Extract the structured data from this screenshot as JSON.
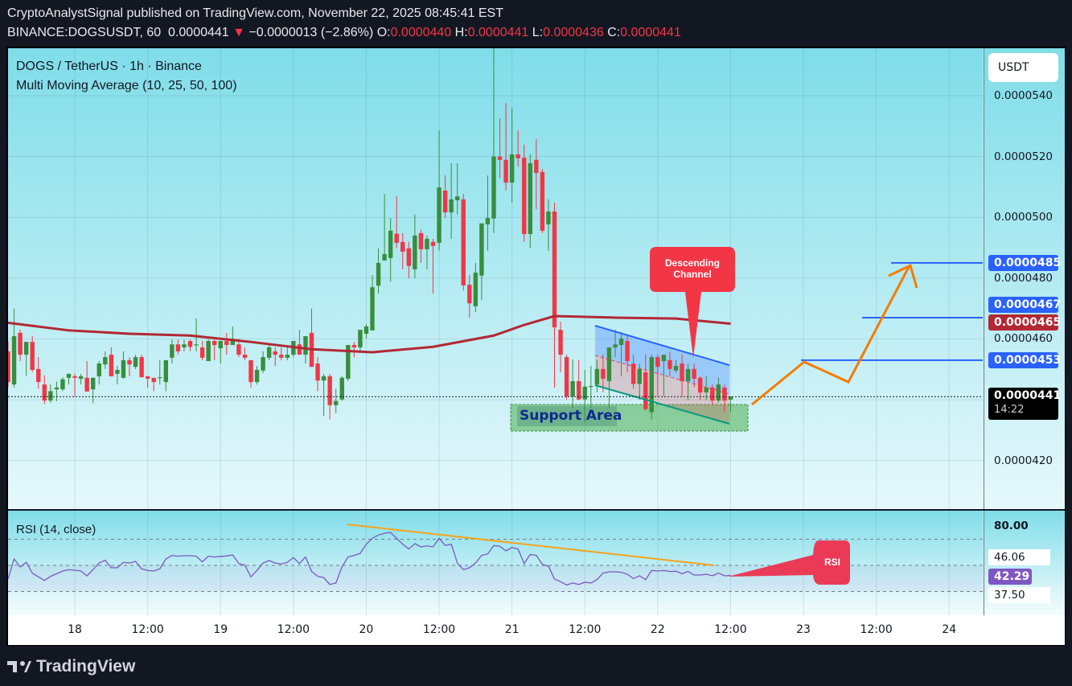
{
  "header": {
    "publisher_line": "CryptoAnalystSignal published on TradingView.com, November 22, 2025 08:45:41 EST",
    "symbol": "BINANCE:DOGSUSDT, 60",
    "last": "0.0000441",
    "change": "−0.0000013 (−2.86%)",
    "o_label": "O:",
    "o": "0.0000440",
    "h_label": "H:",
    "h": "0.0000441",
    "l_label": "L:",
    "l": "0.0000436",
    "c_label": "C:",
    "c": "0.0000441"
  },
  "legend": {
    "title": "DOGS / TetherUS · 1h · Binance",
    "indicator": "Multi Moving Average (10, 25, 50, 100)",
    "rsi": "RSI (14, close)"
  },
  "price_scale": {
    "currency": "USDT",
    "labels": [
      "0.0000540",
      "0.0000520",
      "0.0000500",
      "0.0000480",
      "0.0000460",
      "0.0000420"
    ],
    "current_price": "0.0000441",
    "countdown": "14:22",
    "ma_value": "0.0000465",
    "levels": [
      {
        "label": "0.0000485",
        "price": 4.85e-05
      },
      {
        "label": "0.0000467",
        "price": 4.67e-05
      },
      {
        "label": "0.0000453",
        "price": 4.53e-05
      }
    ]
  },
  "rsi_scale": {
    "labels": [
      "80.00",
      "46.06",
      "42.29",
      "37.50"
    ],
    "current": "42.29"
  },
  "annotations": {
    "descending_channel": "Descending Channel",
    "support_area": "Support Area",
    "rsi_callout": "RSI"
  },
  "branding": "TradingView",
  "colors": {
    "up": "#388e3c",
    "down": "#f23645",
    "ma": "#b22833",
    "level": "#2962ff",
    "rsi": "#7e57c2",
    "projection": "#f57c00"
  },
  "chart_data": {
    "type": "candlestick",
    "symbol": "DOGSUSDT",
    "interval": "1h",
    "ylim": [
      4.08e-05,
      5.55e-05
    ],
    "x_ticks": [
      {
        "label": "18",
        "time": "11-18 00:00"
      },
      {
        "label": "12:00",
        "time": "11-18 12:00"
      },
      {
        "label": "19",
        "time": "11-19 00:00"
      },
      {
        "label": "12:00",
        "time": "11-19 12:00"
      },
      {
        "label": "20",
        "time": "11-20 00:00"
      },
      {
        "label": "12:00",
        "time": "11-20 12:00"
      },
      {
        "label": "21",
        "time": "11-21 00:00"
      },
      {
        "label": "12:00",
        "time": "11-21 12:00"
      },
      {
        "label": "22",
        "time": "11-22 00:00"
      },
      {
        "label": "12:00",
        "time": "11-22 12:00"
      },
      {
        "label": "23",
        "time": "11-23 00:00"
      },
      {
        "label": "12:00",
        "time": "11-23 12:00"
      },
      {
        "label": "24",
        "time": "11-24 00:00"
      }
    ],
    "candles_columns": [
      "time",
      "open",
      "high",
      "low",
      "close"
    ],
    "candles": [
      [
        "11-17 13:00",
        4.559e-05,
        4.591e-05,
        4.44e-05,
        4.458e-05
      ],
      [
        "11-17 14:00",
        4.45e-05,
        4.7e-05,
        4.44e-05,
        4.609e-05
      ],
      [
        "11-17 15:00",
        4.62e-05,
        4.63e-05,
        4.527e-05,
        4.548e-05
      ],
      [
        "11-17 16:00",
        4.548e-05,
        4.59e-05,
        4.478e-05,
        4.59e-05
      ],
      [
        "11-17 17:00",
        4.59e-05,
        4.609e-05,
        4.491e-05,
        4.498e-05
      ],
      [
        "11-17 18:00",
        4.501e-05,
        4.54e-05,
        4.436e-05,
        4.458e-05
      ],
      [
        "11-17 19:00",
        4.45e-05,
        4.48e-05,
        4.386e-05,
        4.397e-05
      ],
      [
        "11-17 20:00",
        4.397e-05,
        4.45e-05,
        4.39e-05,
        4.428e-05
      ],
      [
        "11-17 21:00",
        4.434e-05,
        4.46e-05,
        4.395e-05,
        4.44e-05
      ],
      [
        "11-17 22:00",
        4.434e-05,
        4.474e-05,
        4.428e-05,
        4.467e-05
      ],
      [
        "11-17 23:00",
        4.472e-05,
        4.485e-05,
        4.45e-05,
        4.485e-05
      ],
      [
        "11-18 00:00",
        4.477e-05,
        4.485e-05,
        4.41e-05,
        4.472e-05
      ],
      [
        "11-18 01:00",
        4.469e-05,
        4.485e-05,
        4.45e-05,
        4.477e-05
      ],
      [
        "11-18 02:00",
        4.472e-05,
        4.527e-05,
        4.427e-05,
        4.427e-05
      ],
      [
        "11-18 03:00",
        4.434e-05,
        4.474e-05,
        4.388e-05,
        4.472e-05
      ],
      [
        "11-18 04:00",
        4.477e-05,
        4.527e-05,
        4.45e-05,
        4.519e-05
      ],
      [
        "11-18 05:00",
        4.516e-05,
        4.559e-05,
        4.501e-05,
        4.54e-05
      ],
      [
        "11-18 06:00",
        4.548e-05,
        4.572e-05,
        4.477e-05,
        4.477e-05
      ],
      [
        "11-18 07:00",
        4.485e-05,
        4.511e-05,
        4.45e-05,
        4.498e-05
      ],
      [
        "11-18 08:00",
        4.472e-05,
        4.559e-05,
        4.469e-05,
        4.53e-05
      ],
      [
        "11-18 09:00",
        4.53e-05,
        4.54e-05,
        4.477e-05,
        4.516e-05
      ],
      [
        "11-18 10:00",
        4.508e-05,
        4.548e-05,
        4.501e-05,
        4.54e-05
      ],
      [
        "11-18 11:00",
        4.54e-05,
        4.548e-05,
        4.474e-05,
        4.474e-05
      ],
      [
        "11-18 12:00",
        4.477e-05,
        4.477e-05,
        4.44e-05,
        4.469e-05
      ],
      [
        "11-18 13:00",
        4.472e-05,
        4.472e-05,
        4.428e-05,
        4.458e-05
      ],
      [
        "11-18 14:00",
        4.472e-05,
        4.53e-05,
        4.45e-05,
        4.474e-05
      ],
      [
        "11-18 15:00",
        4.458e-05,
        4.53e-05,
        4.428e-05,
        4.53e-05
      ],
      [
        "11-18 16:00",
        4.538e-05,
        4.598e-05,
        4.519e-05,
        4.582e-05
      ],
      [
        "11-18 17:00",
        4.582e-05,
        4.598e-05,
        4.548e-05,
        4.559e-05
      ],
      [
        "11-18 18:00",
        4.572e-05,
        4.598e-05,
        4.559e-05,
        4.582e-05
      ],
      [
        "11-18 19:00",
        4.593e-05,
        4.598e-05,
        4.559e-05,
        4.574e-05
      ],
      [
        "11-18 20:00",
        4.58e-05,
        4.667e-05,
        4.559e-05,
        4.582e-05
      ],
      [
        "11-18 21:00",
        4.572e-05,
        4.593e-05,
        4.53e-05,
        4.538e-05
      ],
      [
        "11-18 22:00",
        4.527e-05,
        4.598e-05,
        4.527e-05,
        4.593e-05
      ],
      [
        "11-18 23:00",
        4.593e-05,
        4.598e-05,
        4.53e-05,
        4.58e-05
      ],
      [
        "11-19 00:00",
        4.569e-05,
        4.593e-05,
        4.519e-05,
        4.593e-05
      ],
      [
        "11-19 01:00",
        4.593e-05,
        4.62e-05,
        4.548e-05,
        4.58e-05
      ],
      [
        "11-19 02:00",
        4.58e-05,
        4.641e-05,
        4.58e-05,
        4.601e-05
      ],
      [
        "11-19 03:00",
        4.582e-05,
        4.601e-05,
        4.54e-05,
        4.548e-05
      ],
      [
        "11-19 04:00",
        4.548e-05,
        4.572e-05,
        4.53e-05,
        4.538e-05
      ],
      [
        "11-19 05:00",
        4.53e-05,
        4.53e-05,
        4.44e-05,
        4.458e-05
      ],
      [
        "11-19 06:00",
        4.458e-05,
        4.511e-05,
        4.45e-05,
        4.498e-05
      ],
      [
        "11-19 07:00",
        4.496e-05,
        4.559e-05,
        4.488e-05,
        4.54e-05
      ],
      [
        "11-19 08:00",
        4.538e-05,
        4.58e-05,
        4.53e-05,
        4.572e-05
      ],
      [
        "11-19 09:00",
        4.559e-05,
        4.572e-05,
        4.511e-05,
        4.548e-05
      ],
      [
        "11-19 10:00",
        4.548e-05,
        4.572e-05,
        4.53e-05,
        4.538e-05
      ],
      [
        "11-19 11:00",
        4.538e-05,
        4.572e-05,
        4.53e-05,
        4.548e-05
      ],
      [
        "11-19 12:00",
        4.548e-05,
        4.593e-05,
        4.54e-05,
        4.593e-05
      ],
      [
        "11-19 13:00",
        4.582e-05,
        4.63e-05,
        4.548e-05,
        4.548e-05
      ],
      [
        "11-19 14:00",
        4.548e-05,
        4.609e-05,
        4.519e-05,
        4.609e-05
      ],
      [
        "11-19 15:00",
        4.62e-05,
        4.7e-05,
        4.508e-05,
        4.508e-05
      ],
      [
        "11-19 16:00",
        4.519e-05,
        4.54e-05,
        4.428e-05,
        4.463e-05
      ],
      [
        "11-19 17:00",
        4.463e-05,
        4.485e-05,
        4.346e-05,
        4.477e-05
      ],
      [
        "11-19 18:00",
        4.477e-05,
        4.485e-05,
        4.335e-05,
        4.382e-05
      ],
      [
        "11-19 19:00",
        4.382e-05,
        4.436e-05,
        4.356e-05,
        4.396e-05
      ],
      [
        "11-19 20:00",
        4.401e-05,
        4.477e-05,
        4.396e-05,
        4.472e-05
      ],
      [
        "11-19 21:00",
        4.469e-05,
        4.58e-05,
        4.461e-05,
        4.58e-05
      ],
      [
        "11-19 22:00",
        4.58e-05,
        4.59e-05,
        4.54e-05,
        4.572e-05
      ],
      [
        "11-19 23:00",
        4.572e-05,
        4.63e-05,
        4.559e-05,
        4.63e-05
      ],
      [
        "11-20 00:00",
        4.617e-05,
        4.649e-05,
        4.601e-05,
        4.641e-05
      ],
      [
        "11-20 01:00",
        4.628e-05,
        4.81e-05,
        4.628e-05,
        4.77e-05
      ],
      [
        "11-20 02:00",
        4.775e-05,
        4.898e-05,
        4.749e-05,
        4.85e-05
      ],
      [
        "11-20 03:00",
        4.858e-05,
        5.077e-05,
        4.858e-05,
        4.879e-05
      ],
      [
        "11-20 04:00",
        4.866e-05,
        4.998e-05,
        4.789e-05,
        4.956e-05
      ],
      [
        "11-20 05:00",
        4.946e-05,
        5.069e-05,
        4.898e-05,
        4.916e-05
      ],
      [
        "11-20 06:00",
        4.919e-05,
        4.948e-05,
        4.829e-05,
        4.887e-05
      ],
      [
        "11-20 07:00",
        4.898e-05,
        4.919e-05,
        4.799e-05,
        4.84e-05
      ],
      [
        "11-20 08:00",
        4.829e-05,
        5.009e-05,
        4.799e-05,
        4.94e-05
      ],
      [
        "11-20 09:00",
        4.948e-05,
        4.959e-05,
        4.85e-05,
        4.895e-05
      ],
      [
        "11-20 10:00",
        4.895e-05,
        4.94e-05,
        4.829e-05,
        4.929e-05
      ],
      [
        "11-20 11:00",
        4.919e-05,
        4.929e-05,
        4.749e-05,
        4.906e-05
      ],
      [
        "11-20 12:00",
        4.916e-05,
        5.286e-05,
        4.89e-05,
        5.098e-05
      ],
      [
        "11-20 13:00",
        5.088e-05,
        5.138e-05,
        4.998e-05,
        5.016e-05
      ],
      [
        "11-20 14:00",
        5.016e-05,
        5.178e-05,
        4.929e-05,
        5.059e-05
      ],
      [
        "11-20 15:00",
        5.056e-05,
        5.178e-05,
        5.009e-05,
        5.069e-05
      ],
      [
        "11-20 16:00",
        5.059e-05,
        5.077e-05,
        4.76e-05,
        4.776e-05
      ],
      [
        "11-20 17:00",
        4.778e-05,
        4.81e-05,
        4.67e-05,
        4.717e-05
      ],
      [
        "11-20 18:00",
        4.707e-05,
        4.85e-05,
        4.688e-05,
        4.818e-05
      ],
      [
        "11-20 19:00",
        4.808e-05,
        4.98e-05,
        4.728e-05,
        4.98e-05
      ],
      [
        "11-20 20:00",
        4.977e-05,
        5.138e-05,
        4.89e-05,
        4.998e-05
      ],
      [
        "11-20 21:00",
        4.996e-05,
        5.556e-05,
        4.948e-05,
        5.2e-05
      ],
      [
        "11-20 22:00",
        5.2e-05,
        5.326e-05,
        5.128e-05,
        5.189e-05
      ],
      [
        "11-20 23:00",
        5.189e-05,
        5.376e-05,
        5.088e-05,
        5.114e-05
      ],
      [
        "11-21 00:00",
        5.114e-05,
        5.358e-05,
        5.048e-05,
        5.207e-05
      ],
      [
        "11-21 01:00",
        5.207e-05,
        5.286e-05,
        5.167e-05,
        5.194e-05
      ],
      [
        "11-21 02:00",
        5.196e-05,
        5.239e-05,
        4.919e-05,
        4.945e-05
      ],
      [
        "11-21 03:00",
        4.945e-05,
        5.207e-05,
        4.898e-05,
        5.178e-05
      ],
      [
        "11-21 04:00",
        5.189e-05,
        5.257e-05,
        5.027e-05,
        5.146e-05
      ],
      [
        "11-21 05:00",
        5.149e-05,
        5.159e-05,
        4.948e-05,
        4.956e-05
      ],
      [
        "11-21 06:00",
        4.977e-05,
        5.059e-05,
        4.89e-05,
        5.019e-05
      ],
      [
        "11-21 07:00",
        5.019e-05,
        5.048e-05,
        4.44e-05,
        4.638e-05
      ],
      [
        "11-21 08:00",
        4.63e-05,
        4.657e-05,
        4.49e-05,
        4.548e-05
      ],
      [
        "11-21 09:00",
        4.54e-05,
        4.548e-05,
        4.4e-05,
        4.411e-05
      ],
      [
        "11-21 10:00",
        4.411e-05,
        4.532e-05,
        4.373e-05,
        4.461e-05
      ],
      [
        "11-21 11:00",
        4.461e-05,
        4.53e-05,
        4.398e-05,
        4.401e-05
      ],
      [
        "11-21 12:00",
        4.401e-05,
        4.498e-05,
        4.327e-05,
        4.443e-05
      ],
      [
        "11-21 13:00",
        4.443e-05,
        4.511e-05,
        4.373e-05,
        4.445e-05
      ],
      [
        "11-21 14:00",
        4.45e-05,
        4.532e-05,
        4.424e-05,
        4.501e-05
      ],
      [
        "11-21 15:00",
        4.501e-05,
        4.548e-05,
        4.424e-05,
        4.469e-05
      ],
      [
        "11-21 16:00",
        4.461e-05,
        4.572e-05,
        4.373e-05,
        4.572e-05
      ],
      [
        "11-21 17:00",
        4.572e-05,
        4.63e-05,
        4.54e-05,
        4.582e-05
      ],
      [
        "11-21 18:00",
        4.58e-05,
        4.622e-05,
        4.477e-05,
        4.601e-05
      ],
      [
        "11-21 19:00",
        4.593e-05,
        4.609e-05,
        4.49e-05,
        4.527e-05
      ],
      [
        "11-21 20:00",
        4.519e-05,
        4.548e-05,
        4.436e-05,
        4.452e-05
      ],
      [
        "11-21 21:00",
        4.452e-05,
        4.519e-05,
        4.4e-05,
        4.501e-05
      ],
      [
        "11-21 22:00",
        4.49e-05,
        4.548e-05,
        4.364e-05,
        4.369e-05
      ],
      [
        "11-21 23:00",
        4.359e-05,
        4.548e-05,
        4.335e-05,
        4.54e-05
      ],
      [
        "11-22 00:00",
        4.54e-05,
        4.548e-05,
        4.411e-05,
        4.508e-05
      ],
      [
        "11-22 01:00",
        4.527e-05,
        4.548e-05,
        4.411e-05,
        4.548e-05
      ],
      [
        "11-22 02:00",
        4.53e-05,
        4.556e-05,
        4.477e-05,
        4.501e-05
      ],
      [
        "11-22 03:00",
        4.496e-05,
        4.53e-05,
        4.488e-05,
        4.511e-05
      ],
      [
        "11-22 04:00",
        4.519e-05,
        4.548e-05,
        4.411e-05,
        4.461e-05
      ],
      [
        "11-22 05:00",
        4.461e-05,
        4.519e-05,
        4.398e-05,
        4.501e-05
      ],
      [
        "11-22 06:00",
        4.501e-05,
        4.519e-05,
        4.44e-05,
        4.469e-05
      ],
      [
        "11-22 07:00",
        4.472e-05,
        4.477e-05,
        4.398e-05,
        4.424e-05
      ],
      [
        "11-22 08:00",
        4.424e-05,
        4.477e-05,
        4.398e-05,
        4.44e-05
      ],
      [
        "11-22 09:00",
        4.44e-05,
        4.45e-05,
        4.384e-05,
        4.397e-05
      ],
      [
        "11-22 10:00",
        4.397e-05,
        4.472e-05,
        4.39e-05,
        4.45e-05
      ],
      [
        "11-22 11:00",
        4.44e-05,
        4.45e-05,
        4.359e-05,
        4.397e-05
      ],
      [
        "11-22 12:00",
        4.4e-05,
        4.41e-05,
        4.36e-05,
        4.41e-05
      ]
    ],
    "ma100": [
      [
        "11-17 13:00",
        4.653e-05
      ],
      [
        "11-17 23:00",
        4.628e-05
      ],
      [
        "11-18 09:00",
        4.617e-05
      ],
      [
        "11-18 19:00",
        4.611e-05
      ],
      [
        "11-19 05:00",
        4.59e-05
      ],
      [
        "11-19 15:00",
        4.566e-05
      ],
      [
        "11-20 01:00",
        4.556e-05
      ],
      [
        "11-20 11:00",
        4.574e-05
      ],
      [
        "11-20 21:00",
        4.611e-05
      ],
      [
        "11-21 02:00",
        4.646e-05
      ],
      [
        "11-21 07:00",
        4.675e-05
      ],
      [
        "11-21 17:00",
        4.67e-05
      ],
      [
        "11-22 03:00",
        4.667e-05
      ],
      [
        "11-22 12:00",
        4.65e-05
      ]
    ],
    "rsi": {
      "period": 14,
      "bands": [
        70,
        50,
        30
      ],
      "values": [
        39.5,
        54.9,
        48.8,
        52.3,
        44.1,
        41.2,
        38.5,
        41.6,
        43.6,
        45.7,
        46.7,
        46.3,
        45.7,
        42.0,
        46.7,
        51.8,
        53.9,
        48.2,
        48.2,
        52.3,
        51.8,
        53.1,
        47.3,
        46.1,
        45.7,
        47.3,
        54.9,
        57.6,
        57.0,
        57.4,
        57.4,
        57.0,
        52.7,
        57.0,
        56.4,
        56.8,
        57.2,
        58.0,
        51.4,
        50.2,
        41.2,
        46.1,
        51.8,
        53.7,
        51.8,
        51.0,
        52.3,
        55.9,
        51.4,
        56.4,
        45.3,
        41.6,
        40.6,
        35.4,
        36.5,
        48.8,
        56.4,
        57.6,
        59.2,
        66.2,
        70.7,
        73.2,
        74.6,
        75.2,
        70.7,
        66.2,
        62.5,
        66.6,
        64.1,
        65.0,
        64.1,
        70.7,
        65.2,
        66.2,
        51.8,
        46.7,
        48.2,
        51.8,
        57.6,
        58.8,
        65.2,
        64.6,
        61.1,
        63.7,
        62.5,
        51.4,
        58.4,
        57.6,
        50.8,
        49.4,
        39.5,
        37.5,
        35.0,
        36.5,
        35.4,
        37.1,
        36.5,
        39.1,
        44.1,
        45.1,
        45.1,
        44.7,
        43.2,
        39.9,
        42.0,
        39.1,
        46.1,
        45.7,
        46.1,
        45.3,
        45.5,
        43.6,
        45.3,
        42.6,
        42.6,
        43.2,
        42.0,
        44.1,
        42.0,
        42.29
      ]
    }
  }
}
